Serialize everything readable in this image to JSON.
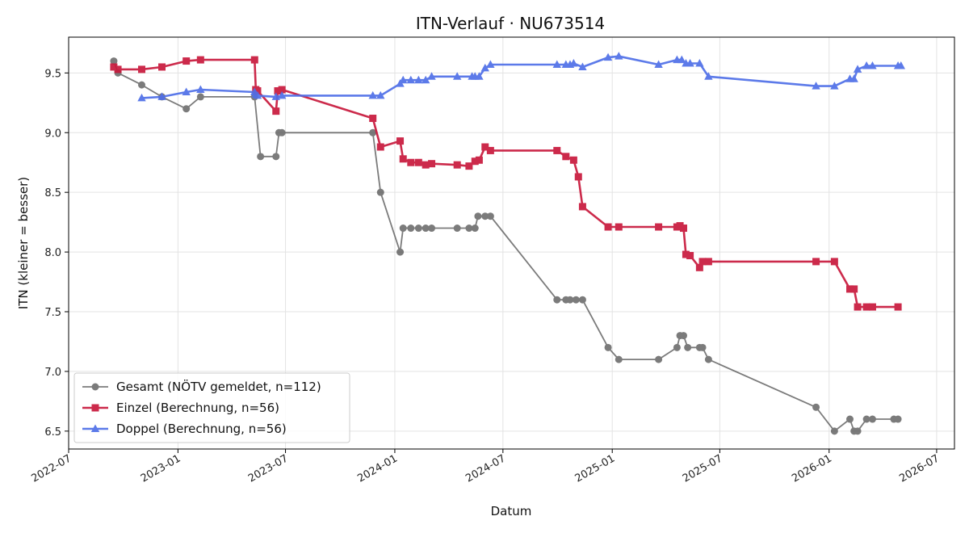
{
  "chart_data": {
    "type": "line",
    "title": "ITN-Verlauf · NU673514",
    "xlabel": "Datum",
    "ylabel": "ITN  (kleiner = besser)",
    "x_axis": "date",
    "xlim": [
      "2022-07-01",
      "2026-07-31"
    ],
    "ylim": [
      6.35,
      9.8
    ],
    "x_ticks": [
      "2022-07",
      "2023-01",
      "2023-07",
      "2024-01",
      "2024-07",
      "2025-01",
      "2025-07",
      "2026-01",
      "2026-07"
    ],
    "y_ticks": [
      6.5,
      7.0,
      7.5,
      8.0,
      8.5,
      9.0,
      9.5
    ],
    "grid": true,
    "legend_position": "lower-left",
    "series": [
      {
        "name": "Gesamt (NÖTV gemeldet, n=112)",
        "color": "#444444",
        "marker": "circle",
        "points": [
          [
            "2022-09-15",
            9.6
          ],
          [
            "2022-09-22",
            9.5
          ],
          [
            "2022-11-01",
            9.4
          ],
          [
            "2022-12-05",
            9.3
          ],
          [
            "2023-01-15",
            9.2
          ],
          [
            "2023-02-08",
            9.3
          ],
          [
            "2023-05-10",
            9.3
          ],
          [
            "2023-05-20",
            8.8
          ],
          [
            "2023-06-15",
            8.8
          ],
          [
            "2023-06-20",
            9.0
          ],
          [
            "2023-06-25",
            9.0
          ],
          [
            "2023-11-25",
            9.0
          ],
          [
            "2023-12-08",
            8.5
          ],
          [
            "2024-01-10",
            8.0
          ],
          [
            "2024-01-15",
            8.2
          ],
          [
            "2024-01-28",
            8.2
          ],
          [
            "2024-02-10",
            8.2
          ],
          [
            "2024-02-22",
            8.2
          ],
          [
            "2024-03-03",
            8.2
          ],
          [
            "2024-04-15",
            8.2
          ],
          [
            "2024-05-05",
            8.2
          ],
          [
            "2024-05-15",
            8.2
          ],
          [
            "2024-05-20",
            8.3
          ],
          [
            "2024-06-01",
            8.3
          ],
          [
            "2024-06-10",
            8.3
          ],
          [
            "2024-09-30",
            7.6
          ],
          [
            "2024-10-15",
            7.6
          ],
          [
            "2024-10-22",
            7.6
          ],
          [
            "2024-11-01",
            7.6
          ],
          [
            "2024-11-12",
            7.6
          ],
          [
            "2024-12-25",
            7.2
          ],
          [
            "2025-01-12",
            7.1
          ],
          [
            "2025-03-20",
            7.1
          ],
          [
            "2025-04-20",
            7.2
          ],
          [
            "2025-04-25",
            7.3
          ],
          [
            "2025-05-01",
            7.3
          ],
          [
            "2025-05-08",
            7.2
          ],
          [
            "2025-05-28",
            7.2
          ],
          [
            "2025-06-02",
            7.2
          ],
          [
            "2025-06-12",
            7.1
          ],
          [
            "2025-12-10",
            6.7
          ],
          [
            "2026-01-10",
            6.5
          ],
          [
            "2026-02-05",
            6.6
          ],
          [
            "2026-02-12",
            6.5
          ],
          [
            "2026-02-18",
            6.5
          ],
          [
            "2026-03-05",
            6.6
          ],
          [
            "2026-03-15",
            6.6
          ],
          [
            "2026-04-20",
            6.6
          ],
          [
            "2026-04-27",
            6.6
          ]
        ]
      },
      {
        "name": "Einzel (Berechnung, n=56)",
        "color": "#c8193c",
        "marker": "square",
        "points": [
          [
            "2022-09-15",
            9.55
          ],
          [
            "2022-09-22",
            9.53
          ],
          [
            "2022-11-01",
            9.53
          ],
          [
            "2022-12-05",
            9.55
          ],
          [
            "2023-01-15",
            9.6
          ],
          [
            "2023-02-08",
            9.61
          ],
          [
            "2023-05-10",
            9.61
          ],
          [
            "2023-05-12",
            9.36
          ],
          [
            "2023-05-15",
            9.35
          ],
          [
            "2023-06-15",
            9.18
          ],
          [
            "2023-06-18",
            9.35
          ],
          [
            "2023-06-25",
            9.36
          ],
          [
            "2023-11-25",
            9.12
          ],
          [
            "2023-12-08",
            8.88
          ],
          [
            "2024-01-10",
            8.93
          ],
          [
            "2024-01-15",
            8.78
          ],
          [
            "2024-01-28",
            8.75
          ],
          [
            "2024-02-10",
            8.75
          ],
          [
            "2024-02-22",
            8.73
          ],
          [
            "2024-03-03",
            8.74
          ],
          [
            "2024-04-15",
            8.73
          ],
          [
            "2024-05-05",
            8.72
          ],
          [
            "2024-05-15",
            8.76
          ],
          [
            "2024-05-22",
            8.77
          ],
          [
            "2024-06-01",
            8.88
          ],
          [
            "2024-06-10",
            8.85
          ],
          [
            "2024-09-30",
            8.85
          ],
          [
            "2024-10-15",
            8.8
          ],
          [
            "2024-10-28",
            8.77
          ],
          [
            "2024-11-05",
            8.63
          ],
          [
            "2024-11-12",
            8.38
          ],
          [
            "2024-12-25",
            8.21
          ],
          [
            "2025-01-12",
            8.21
          ],
          [
            "2025-03-20",
            8.21
          ],
          [
            "2025-04-20",
            8.21
          ],
          [
            "2025-04-25",
            8.22
          ],
          [
            "2025-05-01",
            8.2
          ],
          [
            "2025-05-05",
            7.98
          ],
          [
            "2025-05-12",
            7.97
          ],
          [
            "2025-05-28",
            7.87
          ],
          [
            "2025-06-02",
            7.92
          ],
          [
            "2025-06-12",
            7.92
          ],
          [
            "2025-12-10",
            7.92
          ],
          [
            "2026-01-10",
            7.92
          ],
          [
            "2026-02-05",
            7.69
          ],
          [
            "2026-02-12",
            7.69
          ],
          [
            "2026-02-18",
            7.54
          ],
          [
            "2026-03-05",
            7.54
          ],
          [
            "2026-03-15",
            7.54
          ],
          [
            "2026-04-27",
            7.54
          ]
        ]
      },
      {
        "name": "Doppel (Berechnung, n=56)",
        "color": "#4f6fe8",
        "marker": "triangle",
        "points": [
          [
            "2022-11-01",
            9.29
          ],
          [
            "2022-12-05",
            9.3
          ],
          [
            "2023-01-15",
            9.34
          ],
          [
            "2023-02-08",
            9.36
          ],
          [
            "2023-05-10",
            9.34
          ],
          [
            "2023-05-12",
            9.32
          ],
          [
            "2023-05-15",
            9.31
          ],
          [
            "2023-06-15",
            9.3
          ],
          [
            "2023-06-25",
            9.31
          ],
          [
            "2023-11-25",
            9.31
          ],
          [
            "2023-12-08",
            9.31
          ],
          [
            "2024-01-10",
            9.41
          ],
          [
            "2024-01-15",
            9.44
          ],
          [
            "2024-01-28",
            9.44
          ],
          [
            "2024-02-10",
            9.44
          ],
          [
            "2024-02-22",
            9.44
          ],
          [
            "2024-03-03",
            9.47
          ],
          [
            "2024-04-15",
            9.47
          ],
          [
            "2024-05-10",
            9.47
          ],
          [
            "2024-05-15",
            9.47
          ],
          [
            "2024-05-22",
            9.47
          ],
          [
            "2024-06-01",
            9.54
          ],
          [
            "2024-06-10",
            9.57
          ],
          [
            "2024-09-30",
            9.57
          ],
          [
            "2024-10-15",
            9.57
          ],
          [
            "2024-10-22",
            9.57
          ],
          [
            "2024-10-28",
            9.58
          ],
          [
            "2024-11-12",
            9.55
          ],
          [
            "2024-12-25",
            9.63
          ],
          [
            "2025-01-12",
            9.64
          ],
          [
            "2025-03-20",
            9.57
          ],
          [
            "2025-04-20",
            9.61
          ],
          [
            "2025-04-28",
            9.61
          ],
          [
            "2025-05-05",
            9.58
          ],
          [
            "2025-05-12",
            9.58
          ],
          [
            "2025-05-28",
            9.58
          ],
          [
            "2025-06-12",
            9.47
          ],
          [
            "2025-12-10",
            9.39
          ],
          [
            "2026-01-10",
            9.39
          ],
          [
            "2026-02-05",
            9.45
          ],
          [
            "2026-02-12",
            9.45
          ],
          [
            "2026-02-18",
            9.53
          ],
          [
            "2026-03-05",
            9.56
          ],
          [
            "2026-03-15",
            9.56
          ],
          [
            "2026-04-27",
            9.56
          ],
          [
            "2026-05-02",
            9.56
          ]
        ]
      }
    ]
  }
}
